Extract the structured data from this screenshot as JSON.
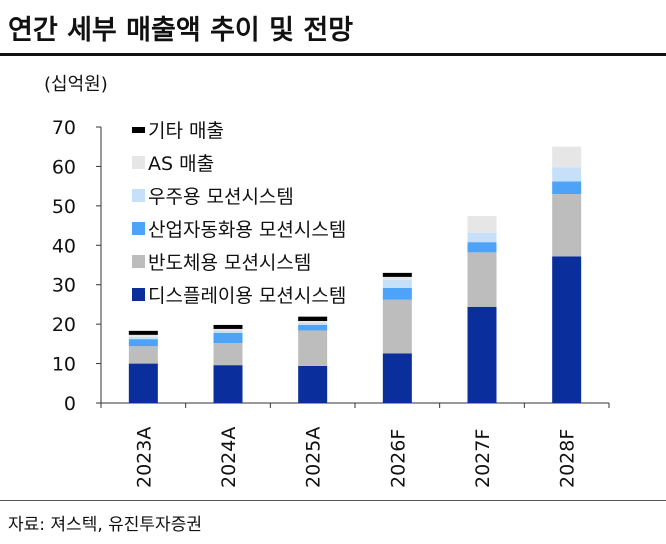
{
  "title": "연간 세부 매출액 추이 및 전망",
  "unit_label": "(십억원)",
  "source": "자료: 져스텍, 유진투자증권",
  "chart_data": {
    "type": "bar",
    "stacked": true,
    "categories": [
      "2023A",
      "2024A",
      "2025A",
      "2026F",
      "2027F",
      "2028F"
    ],
    "ylim": [
      0,
      70
    ],
    "yticks": [
      0,
      10,
      20,
      30,
      40,
      50,
      60,
      70
    ],
    "grid": false,
    "legend_position": "top-left",
    "series": [
      {
        "name": "디스플레이용 모션시스템",
        "color": "#0a2f9c",
        "values": [
          10.0,
          9.6,
          9.4,
          12.6,
          24.4,
          37.2
        ]
      },
      {
        "name": "반도체용 모션시스템",
        "color": "#bdbdbd",
        "values": [
          4.4,
          5.6,
          9.0,
          13.6,
          13.8,
          15.8
        ]
      },
      {
        "name": "산업자동화용 모션시스템",
        "color": "#4da3f7",
        "values": [
          1.8,
          2.6,
          1.4,
          3.0,
          2.6,
          3.2
        ]
      },
      {
        "name": "우주용 모션시스템",
        "color": "#c6e0fa",
        "values": [
          0.6,
          0.6,
          0.5,
          2.0,
          2.4,
          3.6
        ]
      },
      {
        "name": "AS 매출",
        "color": "#e6e6e6",
        "values": [
          0.6,
          0.5,
          0.5,
          1.6,
          4.2,
          5.2
        ]
      },
      {
        "name": "기타 매출",
        "color": "#000000",
        "values": [
          0.9,
          0.9,
          1.1,
          0.2,
          0.0,
          0.0
        ]
      }
    ]
  }
}
